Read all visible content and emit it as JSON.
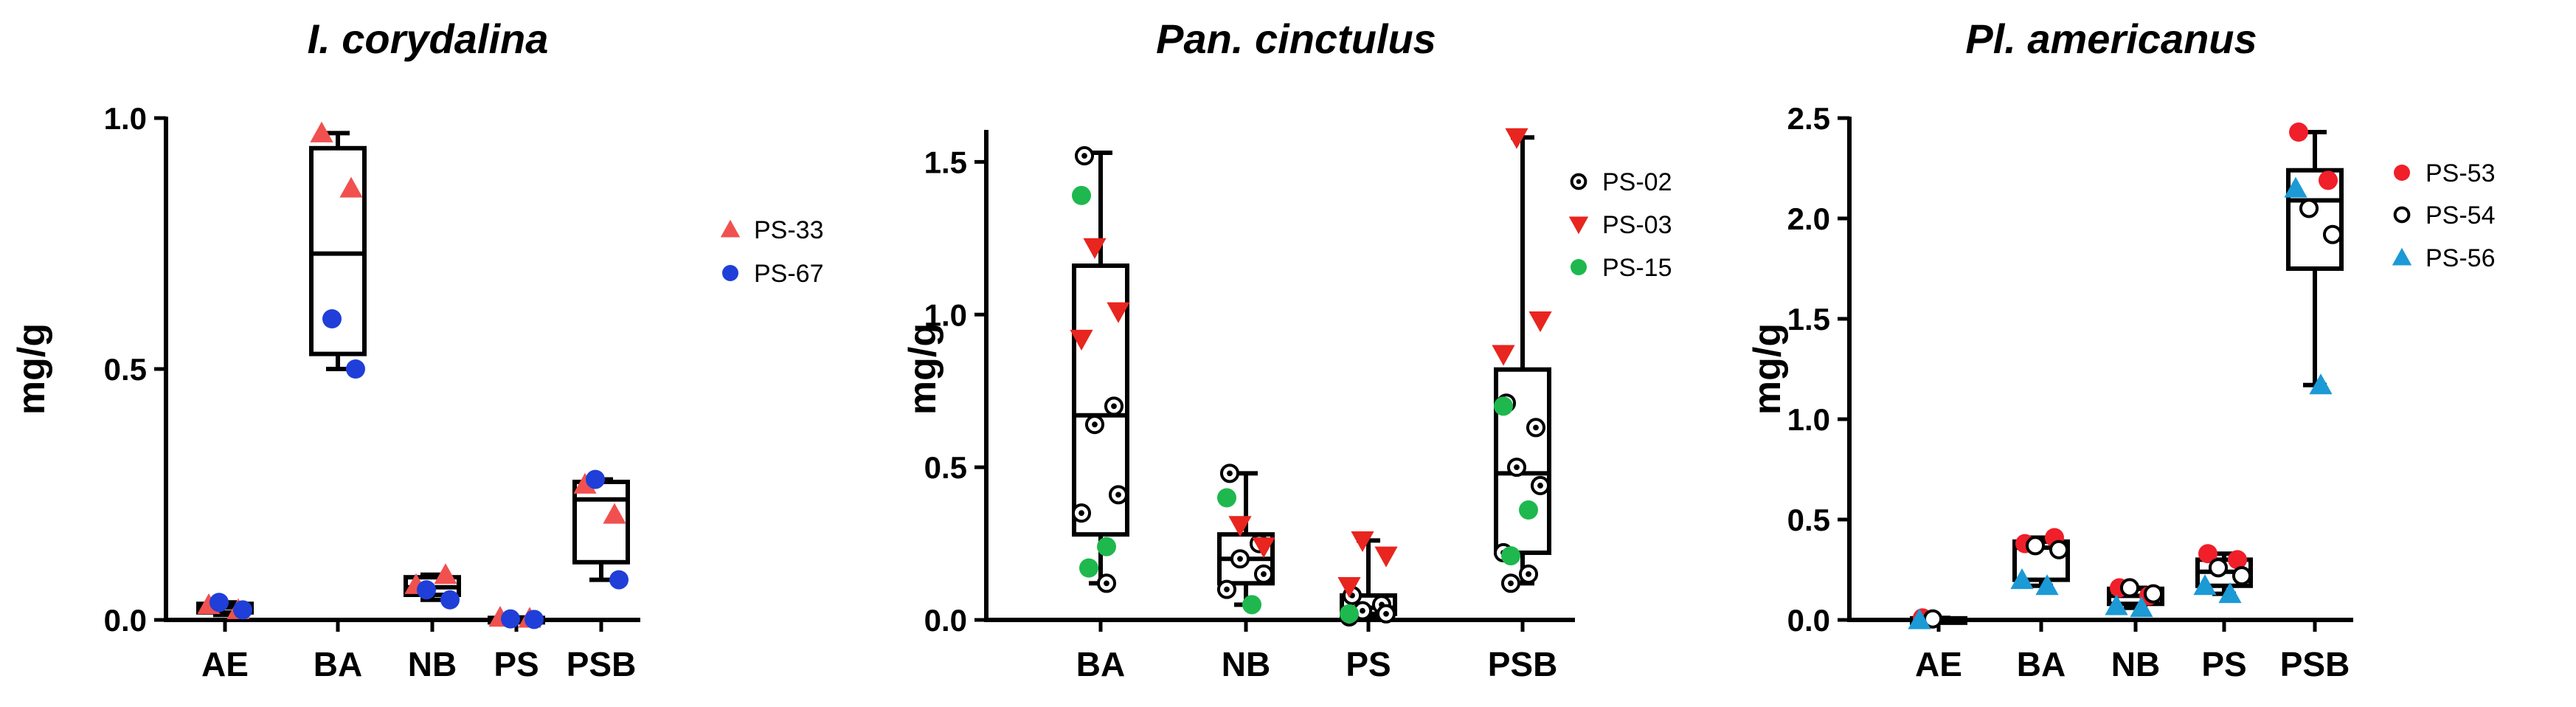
{
  "chart_data": [
    {
      "type": "box",
      "title": "I. corydalina",
      "xlabel": "",
      "ylabel": "mg/g",
      "ylim": [
        0,
        1.0
      ],
      "yticks": [
        "0.0",
        "0.5",
        "1.0"
      ],
      "categories": [
        "AE",
        "BA",
        "NB",
        "PS",
        "PSB"
      ],
      "legend_position": "right",
      "series": [
        {
          "name": "PS-33",
          "marker": "triangle-up",
          "color": "#F0514F",
          "points": [
            [
              0,
              0.03
            ],
            [
              0,
              0.02
            ],
            [
              1,
              0.97
            ],
            [
              1,
              0.86
            ],
            [
              2,
              0.07
            ],
            [
              2,
              0.09
            ],
            [
              3,
              0.005
            ],
            [
              3,
              0.003
            ],
            [
              4,
              0.27
            ],
            [
              4,
              0.21
            ]
          ]
        },
        {
          "name": "PS-67",
          "marker": "circle",
          "color": "#1F3FD8",
          "points": [
            [
              0,
              0.035
            ],
            [
              0,
              0.02
            ],
            [
              1,
              0.6
            ],
            [
              1,
              0.5
            ],
            [
              2,
              0.06
            ],
            [
              2,
              0.04
            ],
            [
              3,
              0.002
            ],
            [
              3,
              0.001
            ],
            [
              4,
              0.28
            ],
            [
              4,
              0.08
            ]
          ]
        }
      ],
      "boxes": [
        {
          "category": "AE",
          "min": 0.01,
          "q1": 0.015,
          "median": 0.025,
          "q3": 0.032,
          "max": 0.035
        },
        {
          "category": "BA",
          "min": 0.5,
          "q1": 0.53,
          "median": 0.73,
          "q3": 0.94,
          "max": 0.97
        },
        {
          "category": "NB",
          "min": 0.04,
          "q1": 0.05,
          "median": 0.065,
          "q3": 0.085,
          "max": 0.09
        },
        {
          "category": "PS",
          "min": 0.0,
          "q1": 0.001,
          "median": 0.002,
          "q3": 0.004,
          "max": 0.005
        },
        {
          "category": "PSB",
          "min": 0.08,
          "q1": 0.115,
          "median": 0.24,
          "q3": 0.275,
          "max": 0.28
        }
      ]
    },
    {
      "type": "box",
      "title": "Pan. cinctulus",
      "xlabel": "",
      "ylabel": "mg/g",
      "ylim": [
        0,
        1.6
      ],
      "yticks": [
        "0.0",
        "0.5",
        "1.0",
        "1.5"
      ],
      "categories": [
        "BA",
        "NB",
        "PS",
        "PSB"
      ],
      "legend_position": "right",
      "series": [
        {
          "name": "PS-02",
          "marker": "open-circle-dot",
          "color": "#000000",
          "points": [
            [
              0,
              1.52
            ],
            [
              0,
              0.7
            ],
            [
              0,
              0.64
            ],
            [
              0,
              0.41
            ],
            [
              0,
              0.35
            ],
            [
              0,
              0.12
            ],
            [
              1,
              0.48
            ],
            [
              1,
              0.25
            ],
            [
              1,
              0.2
            ],
            [
              1,
              0.15
            ],
            [
              1,
              0.1
            ],
            [
              2,
              0.08
            ],
            [
              2,
              0.05
            ],
            [
              2,
              0.03
            ],
            [
              2,
              0.02
            ],
            [
              2,
              0.01
            ],
            [
              3,
              0.71
            ],
            [
              3,
              0.63
            ],
            [
              3,
              0.5
            ],
            [
              3,
              0.44
            ],
            [
              3,
              0.22
            ],
            [
              3,
              0.15
            ],
            [
              3,
              0.12
            ]
          ]
        },
        {
          "name": "PS-03",
          "marker": "triangle-down",
          "color": "#E8251F",
          "points": [
            [
              0,
              1.22
            ],
            [
              0,
              1.01
            ],
            [
              0,
              0.92
            ],
            [
              1,
              0.31
            ],
            [
              1,
              0.24
            ],
            [
              2,
              0.26
            ],
            [
              2,
              0.21
            ],
            [
              2,
              0.11
            ],
            [
              3,
              1.58
            ],
            [
              3,
              0.98
            ],
            [
              3,
              0.87
            ]
          ]
        },
        {
          "name": "PS-15",
          "marker": "circle",
          "color": "#1EB84E",
          "points": [
            [
              0,
              1.39
            ],
            [
              0,
              0.24
            ],
            [
              0,
              0.17
            ],
            [
              1,
              0.4
            ],
            [
              1,
              0.05
            ],
            [
              2,
              0.02
            ],
            [
              3,
              0.7
            ],
            [
              3,
              0.36
            ],
            [
              3,
              0.21
            ]
          ]
        }
      ],
      "boxes": [
        {
          "category": "BA",
          "min": 0.12,
          "q1": 0.28,
          "median": 0.67,
          "q3": 1.16,
          "max": 1.53
        },
        {
          "category": "NB",
          "min": 0.05,
          "q1": 0.12,
          "median": 0.2,
          "q3": 0.28,
          "max": 0.48
        },
        {
          "category": "PS",
          "min": 0.01,
          "q1": 0.02,
          "median": 0.04,
          "q3": 0.08,
          "max": 0.26
        },
        {
          "category": "PSB",
          "min": 0.12,
          "q1": 0.22,
          "median": 0.48,
          "q3": 0.82,
          "max": 1.58
        }
      ]
    },
    {
      "type": "box",
      "title": "Pl. americanus",
      "xlabel": "",
      "ylabel": "mg/g",
      "ylim": [
        0,
        2.5
      ],
      "yticks": [
        "0.0",
        "0.5",
        "1.0",
        "1.5",
        "2.0",
        "2.5"
      ],
      "categories": [
        "AE",
        "BA",
        "NB",
        "PS",
        "PSB"
      ],
      "legend_position": "right",
      "series": [
        {
          "name": "PS-53",
          "marker": "circle",
          "color": "#F01F2A",
          "points": [
            [
              0,
              0.01
            ],
            [
              1,
              0.38
            ],
            [
              1,
              0.41
            ],
            [
              2,
              0.16
            ],
            [
              2,
              0.12
            ],
            [
              3,
              0.33
            ],
            [
              3,
              0.3
            ],
            [
              4,
              2.43
            ],
            [
              4,
              2.19
            ]
          ]
        },
        {
          "name": "PS-54",
          "marker": "open-circle",
          "color": "#000000",
          "points": [
            [
              0,
              0.005
            ],
            [
              1,
              0.37
            ],
            [
              1,
              0.35
            ],
            [
              2,
              0.16
            ],
            [
              2,
              0.13
            ],
            [
              3,
              0.26
            ],
            [
              3,
              0.22
            ],
            [
              4,
              2.05
            ],
            [
              4,
              1.92
            ]
          ]
        },
        {
          "name": "PS-56",
          "marker": "triangle-up",
          "color": "#1B9AD6",
          "points": [
            [
              0,
              0.0
            ],
            [
              1,
              0.2
            ],
            [
              1,
              0.17
            ],
            [
              2,
              0.07
            ],
            [
              2,
              0.06
            ],
            [
              3,
              0.17
            ],
            [
              3,
              0.13
            ],
            [
              4,
              2.15
            ],
            [
              4,
              1.17
            ]
          ]
        }
      ],
      "boxes": [
        {
          "category": "AE",
          "min": 0.0,
          "q1": 0.002,
          "median": 0.005,
          "q3": 0.008,
          "max": 0.01
        },
        {
          "category": "BA",
          "min": 0.17,
          "q1": 0.2,
          "median": 0.36,
          "q3": 0.39,
          "max": 0.41
        },
        {
          "category": "NB",
          "min": 0.06,
          "q1": 0.08,
          "median": 0.12,
          "q3": 0.155,
          "max": 0.16
        },
        {
          "category": "PS",
          "min": 0.13,
          "q1": 0.17,
          "median": 0.24,
          "q3": 0.3,
          "max": 0.33
        },
        {
          "category": "PSB",
          "min": 1.17,
          "q1": 1.75,
          "median": 2.09,
          "q3": 2.24,
          "max": 2.43
        }
      ]
    }
  ]
}
